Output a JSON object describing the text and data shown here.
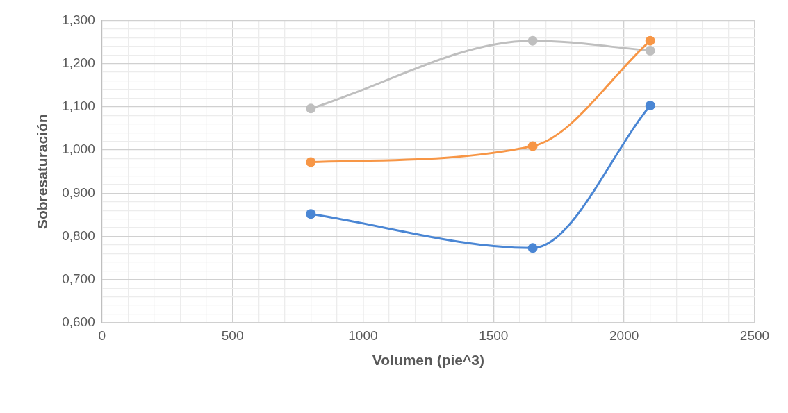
{
  "chart_data": {
    "type": "line",
    "xlabel": "Volumen (pie^3)",
    "ylabel": "Sobresaturación",
    "x": [
      800,
      1650,
      2100
    ],
    "series": [
      {
        "color": "#4a86d4",
        "values": [
          0.852,
          0.773,
          1.103
        ]
      },
      {
        "color": "#f79646",
        "values": [
          0.972,
          1.009,
          1.253
        ]
      },
      {
        "color": "#bfbfbf",
        "values": [
          1.096,
          1.253,
          1.23
        ]
      }
    ],
    "line_style": "solid",
    "marker": "circle",
    "grid": true,
    "legend": false,
    "xlim": [
      0,
      2500
    ],
    "ylim": [
      0.6,
      1.3
    ],
    "xticks": [
      0,
      {
        "value": 100,
        "label": null
      },
      {
        "value": 200,
        "label": null
      },
      {
        "value": 300,
        "label": null
      },
      {
        "value": 400,
        "label": null
      },
      500,
      {
        "value": 600,
        "label": null
      },
      {
        "value": 700,
        "label": null
      },
      {
        "value": 800,
        "label": null
      },
      {
        "value": 900,
        "label": null
      },
      1000,
      {
        "value": 1100,
        "label": null
      },
      {
        "value": 1200,
        "label": null
      },
      {
        "value": 1300,
        "label": null
      },
      {
        "value": 1400,
        "label": null
      },
      1500,
      {
        "value": 1600,
        "label": null
      },
      {
        "value": 1700,
        "label": null
      },
      {
        "value": 1800,
        "label": null
      },
      {
        "value": 1900,
        "label": null
      },
      2000,
      {
        "value": 2100,
        "label": null
      },
      {
        "value": 2200,
        "label": null
      },
      {
        "value": 2300,
        "label": null
      },
      {
        "value": 2400,
        "label": null
      },
      2500
    ],
    "yticks": [
      {
        "value": 0.6,
        "label": "0,600"
      },
      {
        "value": 0.62,
        "label": null
      },
      {
        "value": 0.64,
        "label": null
      },
      {
        "value": 0.66,
        "label": null
      },
      {
        "value": 0.68,
        "label": null
      },
      {
        "value": 0.7,
        "label": "0,700"
      },
      {
        "value": 0.72,
        "label": null
      },
      {
        "value": 0.74,
        "label": null
      },
      {
        "value": 0.76,
        "label": null
      },
      {
        "value": 0.78,
        "label": null
      },
      {
        "value": 0.8,
        "label": "0,800"
      },
      {
        "value": 0.82,
        "label": null
      },
      {
        "value": 0.84,
        "label": null
      },
      {
        "value": 0.86,
        "label": null
      },
      {
        "value": 0.88,
        "label": null
      },
      {
        "value": 0.9,
        "label": "0,900"
      },
      {
        "value": 0.92,
        "label": null
      },
      {
        "value": 0.94,
        "label": null
      },
      {
        "value": 0.96,
        "label": null
      },
      {
        "value": 0.98,
        "label": null
      },
      {
        "value": 1.0,
        "label": "1,000"
      },
      {
        "value": 1.02,
        "label": null
      },
      {
        "value": 1.04,
        "label": null
      },
      {
        "value": 1.06,
        "label": null
      },
      {
        "value": 1.08,
        "label": null
      },
      {
        "value": 1.1,
        "label": "1,100"
      },
      {
        "value": 1.12,
        "label": null
      },
      {
        "value": 1.14,
        "label": null
      },
      {
        "value": 1.16,
        "label": null
      },
      {
        "value": 1.18,
        "label": null
      },
      {
        "value": 1.2,
        "label": "1,200"
      },
      {
        "value": 1.22,
        "label": null
      },
      {
        "value": 1.24,
        "label": null
      },
      {
        "value": 1.26,
        "label": null
      },
      {
        "value": 1.28,
        "label": null
      },
      {
        "value": 1.3,
        "label": "1,300"
      }
    ]
  }
}
